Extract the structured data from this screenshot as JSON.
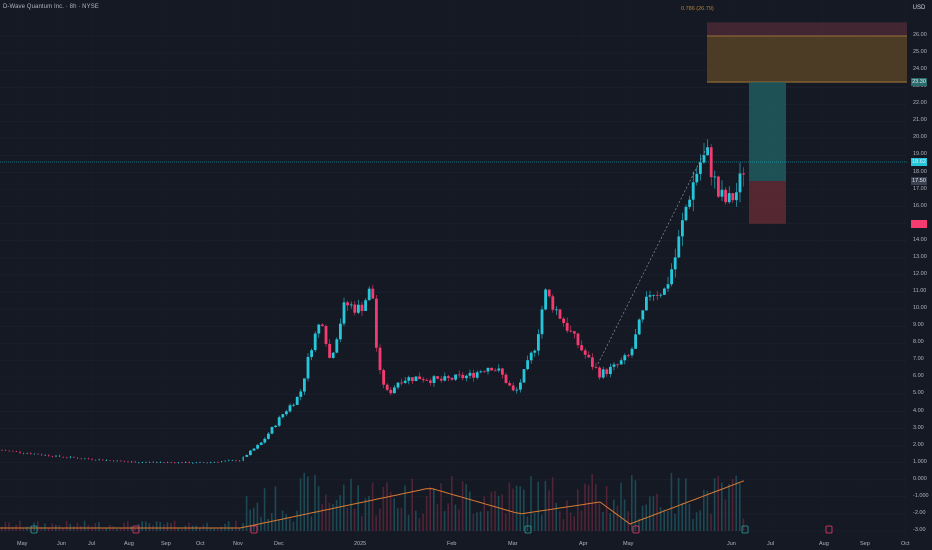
{
  "header": {
    "symbol_title": "D-Wave Quantum Inc. · 8h · NYSE",
    "currency_button": "USD"
  },
  "fib_label": "0.786 (26.79)",
  "colors": {
    "background": "#151924",
    "up": "#26c6da",
    "down": "#f23b6e",
    "volume_up": "#1f5e6a",
    "volume_down": "#6a2a3e",
    "ma": "#d87a32",
    "target_zone": "#1e5c5f",
    "stop_zone": "#5c2a33",
    "fib_zone_top": "#4a2a35",
    "fib_zone_bottom": "#5a4326"
  },
  "price_axis": {
    "ticks": [
      "26.00",
      "25.00",
      "24.00",
      "23.00",
      "22.00",
      "21.00",
      "20.00",
      "19.00",
      "18.00",
      "17.00",
      "16.00",
      "15.00",
      "14.00",
      "13.00",
      "12.00",
      "11.00",
      "10.00",
      "9.00",
      "8.00",
      "7.00",
      "6.00",
      "5.00",
      "4.00",
      "3.00",
      "2.00",
      "1.000",
      "0.000",
      "-1.000",
      "-2.00",
      "-3.00"
    ],
    "markers": [
      {
        "label": "23.30",
        "color": "#2a6b6d",
        "price": 23.3
      },
      {
        "label": "18.62",
        "color": "#26c6da",
        "price": 18.62
      },
      {
        "label": "17.50",
        "color": "#3a4150",
        "price": 17.5
      },
      {
        "label": "",
        "color": "#f23b6e",
        "price": 15.0
      }
    ]
  },
  "time_axis": {
    "ticks": [
      "May",
      "Jun",
      "Jul",
      "Aug",
      "Sep",
      "Oct",
      "Nov",
      "Dec",
      "2025",
      "Feb",
      "Mar",
      "Apr",
      "May",
      "Jun",
      "Jul",
      "Aug",
      "Sep",
      "Oct"
    ]
  },
  "chart_data": {
    "type": "candlestick",
    "price_range": [
      -3.5,
      26.5
    ],
    "position_tool": {
      "entry": 17.5,
      "target": 23.3,
      "stop": 15.0
    },
    "fib_levels": [
      {
        "level": 0.786,
        "price": 26.79
      },
      {
        "price": 26.0
      },
      {
        "price": 23.3
      }
    ],
    "current_price": 18.62,
    "event_markers": [
      "dividend",
      "earnings",
      "earnings",
      "dividend",
      "earnings",
      "dividend",
      "earnings",
      "earnings"
    ]
  }
}
